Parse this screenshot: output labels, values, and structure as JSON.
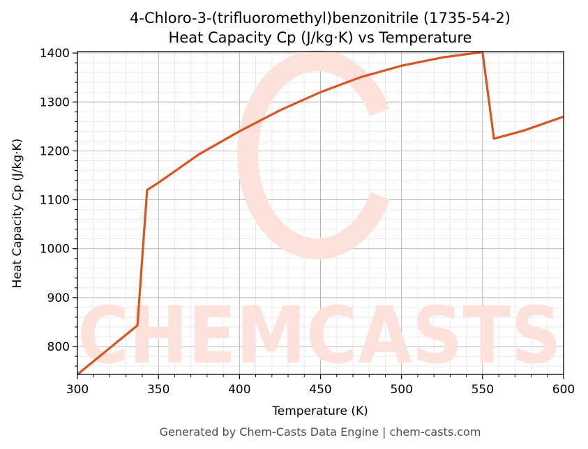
{
  "colors": {
    "line": "#d95421",
    "watermark": "#fde2dc",
    "grid_major": "#b0b0b0",
    "grid_minor": "#e6e6e6",
    "footer_text": "#4d4d4d"
  },
  "watermark": {
    "text": "CHEMCASTS"
  },
  "footer": {
    "text": "Generated by Chem-Casts Data Engine | chem-casts.com"
  },
  "chart_data": {
    "type": "line",
    "title_line1": "4-Chloro-3-(trifluoromethyl)benzonitrile (1735-54-2)",
    "title_line2": "Heat Capacity Cp (J/kg·K) vs Temperature",
    "xlabel": "Temperature (K)",
    "ylabel": "Heat Capacity Cp (J/kg·K)",
    "xlim": [
      300,
      600
    ],
    "ylim": [
      743,
      1403
    ],
    "xticks": [
      300,
      350,
      400,
      450,
      500,
      550,
      600
    ],
    "yticks": [
      800,
      900,
      1000,
      1100,
      1200,
      1300,
      1400
    ],
    "grid": true,
    "series": [
      {
        "x": [
          300,
          337,
          343,
          350,
          375,
          400,
          425,
          450,
          475,
          500,
          525,
          550,
          557,
          575,
          600
        ],
        "y": [
          743,
          843,
          1120,
          1135,
          1193,
          1240,
          1283,
          1320,
          1351,
          1374,
          1391,
          1402,
          1225,
          1241,
          1270
        ]
      }
    ]
  }
}
